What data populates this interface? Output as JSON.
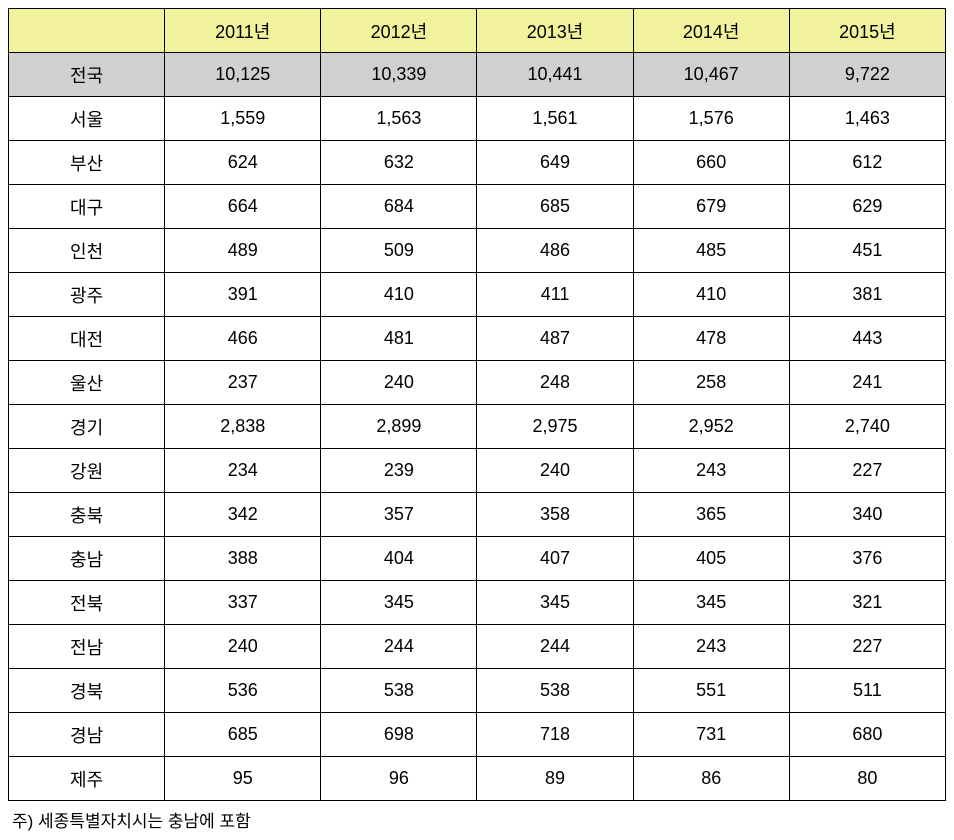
{
  "table": {
    "type": "table",
    "header_bg_color": "#f2f29d",
    "total_row_bg_color": "#d0d0d0",
    "border_color": "#000000",
    "background_color": "#ffffff",
    "font_size": 18,
    "columns": [
      "",
      "2011년",
      "2012년",
      "2013년",
      "2014년",
      "2015년"
    ],
    "total_row": {
      "label": "전국",
      "values": [
        "10,125",
        "10,339",
        "10,441",
        "10,467",
        "9,722"
      ]
    },
    "rows": [
      {
        "label": "서울",
        "values": [
          "1,559",
          "1,563",
          "1,561",
          "1,576",
          "1,463"
        ]
      },
      {
        "label": "부산",
        "values": [
          "624",
          "632",
          "649",
          "660",
          "612"
        ]
      },
      {
        "label": "대구",
        "values": [
          "664",
          "684",
          "685",
          "679",
          "629"
        ]
      },
      {
        "label": "인천",
        "values": [
          "489",
          "509",
          "486",
          "485",
          "451"
        ]
      },
      {
        "label": "광주",
        "values": [
          "391",
          "410",
          "411",
          "410",
          "381"
        ]
      },
      {
        "label": "대전",
        "values": [
          "466",
          "481",
          "487",
          "478",
          "443"
        ]
      },
      {
        "label": "울산",
        "values": [
          "237",
          "240",
          "248",
          "258",
          "241"
        ]
      },
      {
        "label": "경기",
        "values": [
          "2,838",
          "2,899",
          "2,975",
          "2,952",
          "2,740"
        ]
      },
      {
        "label": "강원",
        "values": [
          "234",
          "239",
          "240",
          "243",
          "227"
        ]
      },
      {
        "label": "충북",
        "values": [
          "342",
          "357",
          "358",
          "365",
          "340"
        ]
      },
      {
        "label": "충남",
        "values": [
          "388",
          "404",
          "407",
          "405",
          "376"
        ]
      },
      {
        "label": "전북",
        "values": [
          "337",
          "345",
          "345",
          "345",
          "321"
        ]
      },
      {
        "label": "전남",
        "values": [
          "240",
          "244",
          "244",
          "243",
          "227"
        ]
      },
      {
        "label": "경북",
        "values": [
          "536",
          "538",
          "538",
          "551",
          "511"
        ]
      },
      {
        "label": "경남",
        "values": [
          "685",
          "698",
          "718",
          "731",
          "680"
        ]
      },
      {
        "label": "제주",
        "values": [
          "95",
          "96",
          "89",
          "86",
          "80"
        ]
      }
    ]
  },
  "footnote": "주) 세종특별자치시는 충남에 포함"
}
